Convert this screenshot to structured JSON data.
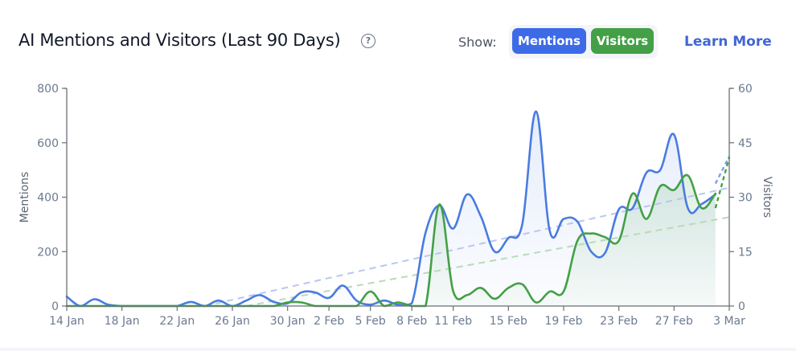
{
  "header": {
    "title": "AI Mentions and Visitors (Last 90 Days)",
    "help_icon": "question-circle-icon",
    "show_label": "Show:",
    "toggles": [
      {
        "label": "Mentions",
        "color": "#3d6be8",
        "active": true
      },
      {
        "label": "Visitors",
        "color": "#43a047",
        "active": true
      }
    ],
    "learn_more": "Learn More"
  },
  "chart_data": {
    "type": "line",
    "title": "AI Mentions and Visitors (Last 90 Days)",
    "xlabel": "",
    "ylabel": "Mentions",
    "y2label": "Visitors",
    "ylim": [
      0,
      800
    ],
    "y2lim": [
      0,
      60
    ],
    "yticks": [
      0,
      200,
      400,
      600,
      800
    ],
    "y2ticks": [
      0,
      15,
      30,
      45,
      60
    ],
    "grid": false,
    "legend": "toggle buttons top-right",
    "x_tick_labels": [
      "14 Jan",
      "18 Jan",
      "22 Jan",
      "26 Jan",
      "30 Jan",
      "2 Feb",
      "5 Feb",
      "8 Feb",
      "11 Feb",
      "15 Feb",
      "19 Feb",
      "23 Feb",
      "27 Feb",
      "3 Mar"
    ],
    "x_tick_day_index": [
      0,
      4,
      8,
      12,
      16,
      19,
      22,
      25,
      28,
      32,
      36,
      40,
      44,
      48
    ],
    "x": [
      "14 Jan",
      "15 Jan",
      "16 Jan",
      "17 Jan",
      "18 Jan",
      "19 Jan",
      "20 Jan",
      "21 Jan",
      "22 Jan",
      "23 Jan",
      "24 Jan",
      "25 Jan",
      "26 Jan",
      "27 Jan",
      "28 Jan",
      "29 Jan",
      "30 Jan",
      "31 Jan",
      "1 Feb",
      "2 Feb",
      "3 Feb",
      "4 Feb",
      "5 Feb",
      "6 Feb",
      "7 Feb",
      "8 Feb",
      "9 Feb",
      "10 Feb",
      "11 Feb",
      "12 Feb",
      "13 Feb",
      "14 Feb",
      "15 Feb",
      "16 Feb",
      "17 Feb",
      "18 Feb",
      "19 Feb",
      "20 Feb",
      "21 Feb",
      "22 Feb",
      "23 Feb",
      "24 Feb",
      "25 Feb",
      "26 Feb",
      "27 Feb",
      "28 Feb",
      "1 Mar",
      "2 Mar",
      "3 Mar"
    ],
    "series": [
      {
        "name": "Mentions",
        "axis": "left",
        "color": "#4a7be0",
        "values": [
          35,
          0,
          25,
          5,
          0,
          0,
          0,
          0,
          0,
          15,
          0,
          20,
          0,
          20,
          40,
          15,
          10,
          50,
          50,
          30,
          75,
          20,
          5,
          20,
          5,
          10,
          270,
          370,
          285,
          410,
          330,
          200,
          250,
          300,
          715,
          275,
          320,
          310,
          200,
          195,
          355,
          360,
          490,
          500,
          630,
          360,
          375,
          410,
          460
        ]
      },
      {
        "name": "Visitors",
        "axis": "right",
        "color": "#43a047",
        "values": [
          0,
          0,
          0,
          0,
          0,
          0,
          0,
          0,
          0,
          0,
          0,
          0,
          0,
          0,
          0,
          0,
          1,
          1,
          0,
          0,
          0,
          0,
          4,
          0,
          1,
          0,
          0,
          28,
          4,
          3,
          5,
          2,
          5,
          6,
          1,
          4,
          4,
          18,
          20,
          19,
          18,
          31,
          24,
          33,
          32,
          36,
          27,
          31,
          27
        ]
      },
      {
        "name": "Mentions trend",
        "style": "dashed",
        "color": "#b8c6f3",
        "start": {
          "x": "24 Jan",
          "y": 0
        },
        "end": {
          "x": "3 Mar",
          "y": 435
        }
      },
      {
        "name": "Visitors trend",
        "style": "dashed",
        "color": "#b9dab8",
        "start": {
          "x": "27 Jan",
          "y": 0
        },
        "end": {
          "x": "3 Mar",
          "y": 24.5
        }
      },
      {
        "name": "Visitors projection",
        "style": "dotted",
        "color": "#43a047",
        "from": {
          "x": "2 Mar",
          "y": 27
        },
        "to": {
          "x": "3 Mar",
          "y": 41
        }
      },
      {
        "name": "Mentions projection",
        "style": "dotted",
        "color": "#7f9ff0",
        "from": {
          "x": "2 Mar",
          "y": 450
        },
        "to": {
          "x": "3 Mar",
          "y": 550
        }
      }
    ]
  }
}
